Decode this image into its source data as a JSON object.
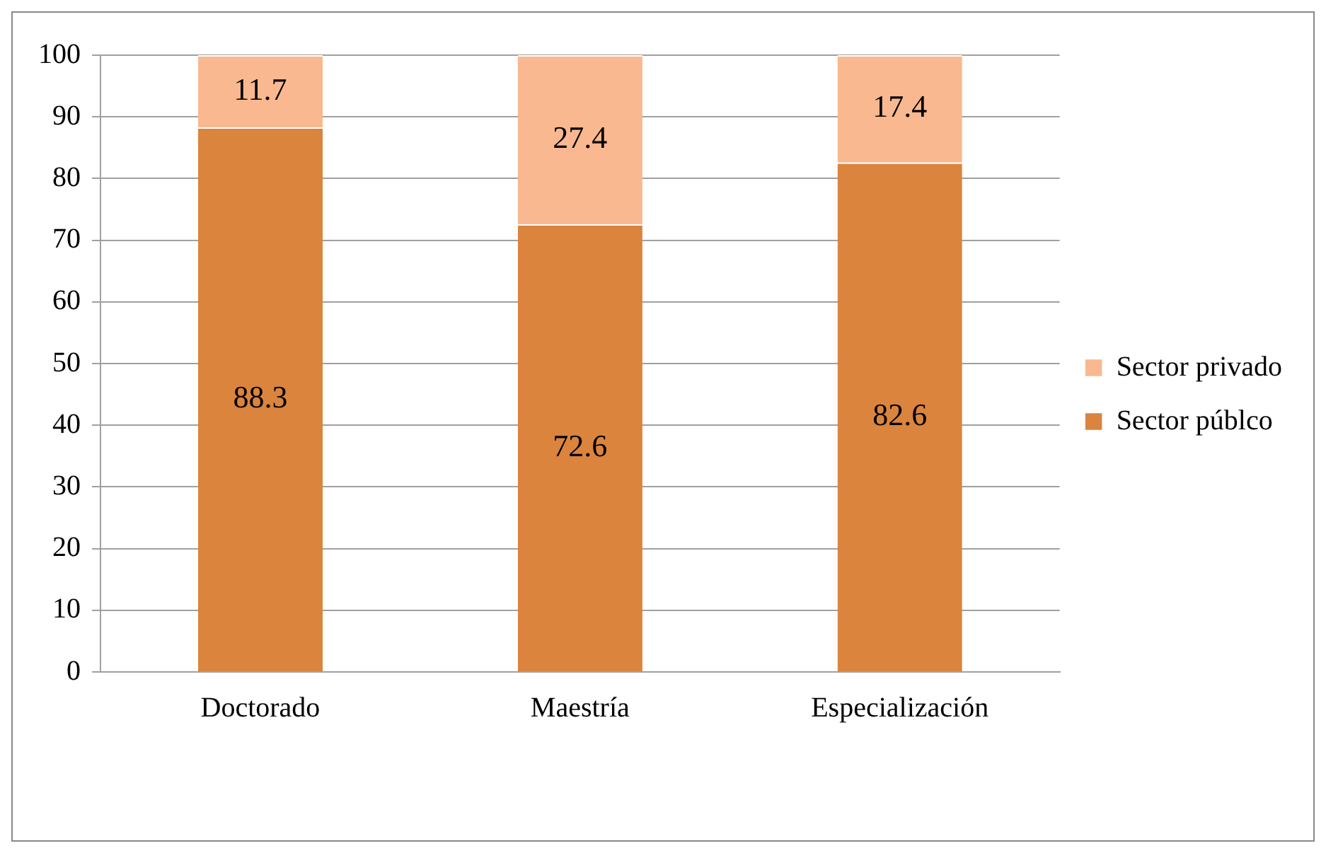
{
  "chart_data": {
    "type": "bar",
    "stacked": true,
    "categories": [
      "Doctorado",
      "Maestría",
      "Especialización"
    ],
    "series": [
      {
        "name": "Sector públco",
        "color": "#db843d",
        "values": [
          88.3,
          72.6,
          82.6
        ]
      },
      {
        "name": "Sector privado",
        "color": "#f9b88f",
        "values": [
          11.7,
          27.4,
          17.4
        ]
      }
    ],
    "ylim": [
      0,
      100
    ],
    "yticks": [
      0,
      10,
      20,
      30,
      40,
      50,
      60,
      70,
      80,
      90,
      100
    ],
    "grid": "y",
    "legend": "right",
    "data_labels": true
  }
}
